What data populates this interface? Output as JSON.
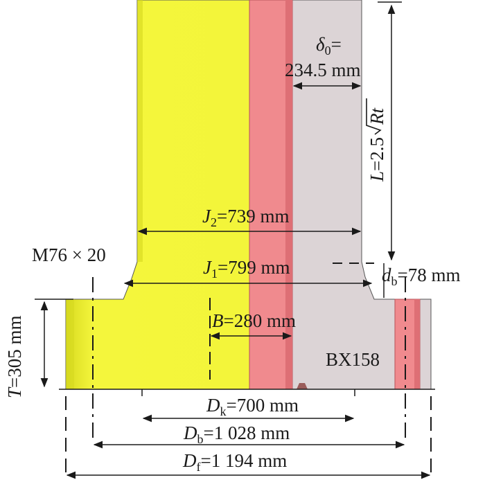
{
  "colors": {
    "hub": "#f3f53a",
    "hub_dark": "#c9cb1a",
    "liner": "#f08a8e",
    "liner_dark": "#c85a60",
    "body": "#dcd4d6",
    "line": "#1a1a1a",
    "background": "#ffffff"
  },
  "labels": {
    "delta0": {
      "sym": "δ",
      "sub": "0",
      "tail": "="
    },
    "delta0_value": "234.5 mm",
    "L": {
      "lhs": "L",
      "eq": "=2.5",
      "rad": "Rt"
    },
    "J2": {
      "sym": "J",
      "sub": "2",
      "tail": "=739 mm"
    },
    "J1": {
      "sym": "J",
      "sub": "1",
      "tail": "=799 mm"
    },
    "M": "M76 × 20",
    "db": {
      "sym": "d",
      "sub": "b",
      "tail": "=78 mm"
    },
    "T": {
      "sym": "T",
      "tail": "=305 mm"
    },
    "B": {
      "sym": "B",
      "tail": "=280 mm"
    },
    "BX": "BX158",
    "Dk": {
      "sym": "D",
      "sub": "k",
      "tail": "=700 mm"
    },
    "Db": {
      "sym": "D",
      "sub": "b",
      "tail": "=1 028 mm"
    },
    "Df": {
      "sym": "D",
      "sub": "f",
      "tail": "=1 194 mm"
    }
  }
}
